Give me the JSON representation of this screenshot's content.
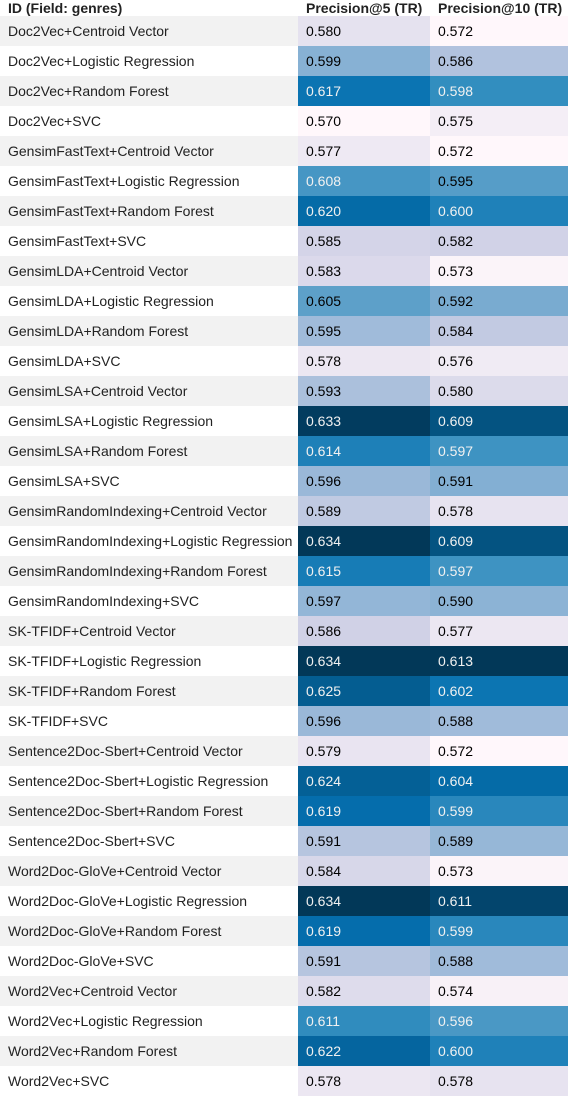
{
  "chart_data": {
    "type": "table",
    "columns": [
      "ID (Field: genres)",
      "Precision@5 (TR)",
      "Precision@10 (TR)"
    ],
    "colormap": {
      "name": "PuBu",
      "light": "#fff7fb",
      "dark": "#023858"
    },
    "rows": [
      {
        "id": "Doc2Vec+Centroid Vector",
        "p5": "0.580",
        "p10": "0.572"
      },
      {
        "id": "Doc2Vec+Logistic Regression",
        "p5": "0.599",
        "p10": "0.586"
      },
      {
        "id": "Doc2Vec+Random Forest",
        "p5": "0.617",
        "p10": "0.598"
      },
      {
        "id": "Doc2Vec+SVC",
        "p5": "0.570",
        "p10": "0.575"
      },
      {
        "id": "GensimFastText+Centroid Vector",
        "p5": "0.577",
        "p10": "0.572"
      },
      {
        "id": "GensimFastText+Logistic Regression",
        "p5": "0.608",
        "p10": "0.595"
      },
      {
        "id": "GensimFastText+Random Forest",
        "p5": "0.620",
        "p10": "0.600"
      },
      {
        "id": "GensimFastText+SVC",
        "p5": "0.585",
        "p10": "0.582"
      },
      {
        "id": "GensimLDA+Centroid Vector",
        "p5": "0.583",
        "p10": "0.573"
      },
      {
        "id": "GensimLDA+Logistic Regression",
        "p5": "0.605",
        "p10": "0.592"
      },
      {
        "id": "GensimLDA+Random Forest",
        "p5": "0.595",
        "p10": "0.584"
      },
      {
        "id": "GensimLDA+SVC",
        "p5": "0.578",
        "p10": "0.576"
      },
      {
        "id": "GensimLSA+Centroid Vector",
        "p5": "0.593",
        "p10": "0.580"
      },
      {
        "id": "GensimLSA+Logistic Regression",
        "p5": "0.633",
        "p10": "0.609"
      },
      {
        "id": "GensimLSA+Random Forest",
        "p5": "0.614",
        "p10": "0.597"
      },
      {
        "id": "GensimLSA+SVC",
        "p5": "0.596",
        "p10": "0.591"
      },
      {
        "id": "GensimRandomIndexing+Centroid Vector",
        "p5": "0.589",
        "p10": "0.578"
      },
      {
        "id": "GensimRandomIndexing+Logistic Regression",
        "p5": "0.634",
        "p10": "0.609"
      },
      {
        "id": "GensimRandomIndexing+Random Forest",
        "p5": "0.615",
        "p10": "0.597"
      },
      {
        "id": "GensimRandomIndexing+SVC",
        "p5": "0.597",
        "p10": "0.590"
      },
      {
        "id": "SK-TFIDF+Centroid Vector",
        "p5": "0.586",
        "p10": "0.577"
      },
      {
        "id": "SK-TFIDF+Logistic Regression",
        "p5": "0.634",
        "p10": "0.613"
      },
      {
        "id": "SK-TFIDF+Random Forest",
        "p5": "0.625",
        "p10": "0.602"
      },
      {
        "id": "SK-TFIDF+SVC",
        "p5": "0.596",
        "p10": "0.588"
      },
      {
        "id": "Sentence2Doc-Sbert+Centroid Vector",
        "p5": "0.579",
        "p10": "0.572"
      },
      {
        "id": "Sentence2Doc-Sbert+Logistic Regression",
        "p5": "0.624",
        "p10": "0.604"
      },
      {
        "id": "Sentence2Doc-Sbert+Random Forest",
        "p5": "0.619",
        "p10": "0.599"
      },
      {
        "id": "Sentence2Doc-Sbert+SVC",
        "p5": "0.591",
        "p10": "0.589"
      },
      {
        "id": "Word2Doc-GloVe+Centroid Vector",
        "p5": "0.584",
        "p10": "0.573"
      },
      {
        "id": "Word2Doc-GloVe+Logistic Regression",
        "p5": "0.634",
        "p10": "0.611"
      },
      {
        "id": "Word2Doc-GloVe+Random Forest",
        "p5": "0.619",
        "p10": "0.599"
      },
      {
        "id": "Word2Doc-GloVe+SVC",
        "p5": "0.591",
        "p10": "0.588"
      },
      {
        "id": "Word2Vec+Centroid Vector",
        "p5": "0.582",
        "p10": "0.574"
      },
      {
        "id": "Word2Vec+Logistic Regression",
        "p5": "0.611",
        "p10": "0.596"
      },
      {
        "id": "Word2Vec+Random Forest",
        "p5": "0.622",
        "p10": "0.600"
      },
      {
        "id": "Word2Vec+SVC",
        "p5": "0.578",
        "p10": "0.578"
      }
    ]
  }
}
